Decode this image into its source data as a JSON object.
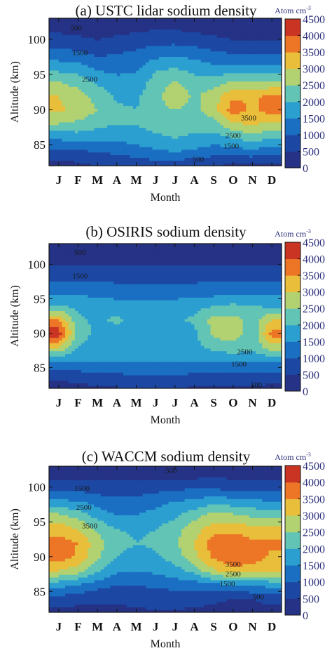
{
  "chart_data": [
    {
      "type": "heatmap",
      "title": "(a) USTC lidar sodium density",
      "xlabel": "Month",
      "ylabel": "Altitude (km)",
      "colorbar_unit": "Atom cm",
      "colorbar_unit_exp": "-3",
      "x": [
        "J",
        "F",
        "M",
        "A",
        "M",
        "J",
        "J",
        "A",
        "S",
        "O",
        "N",
        "D"
      ],
      "y": [
        82,
        84,
        86,
        88,
        90,
        92,
        94,
        96,
        98,
        100,
        102,
        103
      ],
      "xlim": [
        0.5,
        12.5
      ],
      "ylim": [
        82,
        103
      ],
      "yticks": [
        85,
        90,
        95,
        100
      ],
      "colorbar_ticks": [
        0,
        500,
        1000,
        1500,
        2000,
        2500,
        3000,
        3500,
        4000,
        4500
      ],
      "colorbar_range": [
        0,
        4500
      ],
      "contour_labels": [
        {
          "text": "500",
          "x": 1.9,
          "y": 101.5
        },
        {
          "text": "1500",
          "x": 2.1,
          "y": 98
        },
        {
          "text": "2500",
          "x": 2.6,
          "y": 94.2
        },
        {
          "text": "3500",
          "x": 10.8,
          "y": 88.7
        },
        {
          "text": "2500",
          "x": 10.0,
          "y": 86.2
        },
        {
          "text": "1500",
          "x": 9.9,
          "y": 84.7
        },
        {
          "text": "500",
          "x": 8.2,
          "y": 82.8
        }
      ],
      "z": [
        [
          300,
          350,
          500,
          600,
          650,
          700,
          600,
          550,
          450,
          400,
          400,
          350
        ],
        [
          800,
          900,
          1000,
          1100,
          1200,
          1400,
          1500,
          1400,
          1200,
          1200,
          1300,
          1100
        ],
        [
          1600,
          1700,
          1600,
          1600,
          1800,
          1900,
          2000,
          1900,
          1800,
          2000,
          2300,
          2000
        ],
        [
          2500,
          2400,
          2200,
          2000,
          2000,
          2200,
          2300,
          2200,
          2300,
          2900,
          3100,
          2800
        ],
        [
          3100,
          2800,
          2500,
          2100,
          2000,
          2300,
          2500,
          2300,
          2800,
          3800,
          3400,
          3800
        ],
        [
          3000,
          2700,
          2300,
          1900,
          1900,
          2300,
          2900,
          2400,
          2800,
          3400,
          3400,
          3600
        ],
        [
          2500,
          2300,
          1900,
          1700,
          1700,
          2200,
          2500,
          2200,
          2200,
          2600,
          2600,
          2500
        ],
        [
          1800,
          1700,
          1400,
          1300,
          1400,
          1900,
          2000,
          1800,
          1600,
          1700,
          1700,
          1600
        ],
        [
          1200,
          1100,
          900,
          1000,
          1100,
          1300,
          1400,
          1300,
          1100,
          1000,
          1000,
          1000
        ],
        [
          700,
          600,
          500,
          600,
          700,
          800,
          800,
          700,
          600,
          500,
          500,
          500
        ],
        [
          250,
          250,
          200,
          250,
          300,
          350,
          350,
          300,
          250,
          200,
          200,
          250
        ],
        [
          150,
          150,
          150,
          150,
          200,
          200,
          200,
          200,
          150,
          150,
          150,
          150
        ]
      ]
    },
    {
      "type": "heatmap",
      "title": "(b) OSIRIS sodium density",
      "xlabel": "Month",
      "ylabel": "Altitude (km)",
      "colorbar_unit": "Atom cm",
      "colorbar_unit_exp": "-3",
      "x": [
        "J",
        "F",
        "M",
        "A",
        "M",
        "J",
        "J",
        "A",
        "S",
        "O",
        "N",
        "D"
      ],
      "y": [
        82,
        84,
        86,
        88,
        90,
        92,
        94,
        96,
        98,
        100,
        102,
        103
      ],
      "xlim": [
        0.5,
        12.5
      ],
      "ylim": [
        82,
        103
      ],
      "yticks": [
        85,
        90,
        95,
        100
      ],
      "colorbar_ticks": [
        0,
        500,
        1000,
        1500,
        2000,
        2500,
        3000,
        3500,
        4000,
        4500
      ],
      "colorbar_range": [
        0,
        4500
      ],
      "contour_labels": [
        {
          "text": "500",
          "x": 2.1,
          "y": 101.6
        },
        {
          "text": "1500",
          "x": 2.1,
          "y": 98.2
        },
        {
          "text": "2500",
          "x": 10.6,
          "y": 87.2
        },
        {
          "text": "1500",
          "x": 10.3,
          "y": 85.4
        },
        {
          "text": "500",
          "x": 11.2,
          "y": 82.4
        }
      ],
      "z": [
        [
          250,
          300,
          400,
          450,
          500,
          500,
          450,
          450,
          400,
          400,
          400,
          350
        ],
        [
          700,
          800,
          900,
          950,
          1000,
          1000,
          1000,
          950,
          900,
          900,
          900,
          800
        ],
        [
          1600,
          1500,
          1500,
          1500,
          1500,
          1500,
          1500,
          1500,
          1500,
          1600,
          1600,
          1600
        ],
        [
          3000,
          2000,
          1800,
          1700,
          1700,
          1600,
          1600,
          1800,
          2200,
          2300,
          2100,
          2800
        ],
        [
          4300,
          2200,
          1900,
          1800,
          1700,
          1600,
          1600,
          1900,
          2600,
          2800,
          2100,
          3700
        ],
        [
          3500,
          2100,
          1900,
          2100,
          1800,
          1600,
          1900,
          2100,
          2700,
          2700,
          2300,
          3000
        ],
        [
          2000,
          1900,
          1800,
          1700,
          1700,
          1600,
          1700,
          1800,
          2000,
          2100,
          2000,
          1900
        ],
        [
          1400,
          1400,
          1300,
          1300,
          1300,
          1300,
          1300,
          1300,
          1300,
          1400,
          1400,
          1400
        ],
        [
          900,
          900,
          900,
          850,
          850,
          850,
          850,
          850,
          900,
          900,
          900,
          900
        ],
        [
          500,
          500,
          450,
          450,
          450,
          450,
          450,
          450,
          500,
          500,
          500,
          500
        ],
        [
          150,
          150,
          150,
          200,
          200,
          200,
          200,
          200,
          200,
          150,
          150,
          150
        ],
        [
          100,
          100,
          100,
          100,
          100,
          100,
          100,
          100,
          100,
          100,
          100,
          100
        ]
      ]
    },
    {
      "type": "heatmap",
      "title": "(c) WACCM  sodium density",
      "xlabel": "Month",
      "ylabel": "Altitude (km)",
      "colorbar_unit": "Atom cm",
      "colorbar_unit_exp": "-3",
      "x": [
        "J",
        "F",
        "M",
        "A",
        "M",
        "J",
        "J",
        "A",
        "S",
        "O",
        "N",
        "D"
      ],
      "y": [
        82,
        84,
        86,
        88,
        90,
        92,
        94,
        96,
        98,
        100,
        102,
        103
      ],
      "xlim": [
        0.5,
        12.5
      ],
      "ylim": [
        82,
        103
      ],
      "yticks": [
        85,
        90,
        95,
        100
      ],
      "colorbar_ticks": [
        0,
        500,
        1000,
        1500,
        2000,
        2500,
        3000,
        3500,
        4000,
        4500
      ],
      "colorbar_range": [
        0,
        4500
      ],
      "contour_labels": [
        {
          "text": "500",
          "x": 6.8,
          "y": 102.3
        },
        {
          "text": "1500",
          "x": 2.2,
          "y": 99.7
        },
        {
          "text": "2500",
          "x": 2.3,
          "y": 97.0
        },
        {
          "text": "3500",
          "x": 2.6,
          "y": 94.3
        },
        {
          "text": "3500",
          "x": 10.0,
          "y": 88.8
        },
        {
          "text": "2500",
          "x": 10.0,
          "y": 87.4
        },
        {
          "text": "1500",
          "x": 9.7,
          "y": 86.0
        },
        {
          "text": "500",
          "x": 11.3,
          "y": 84.1
        }
      ],
      "z": [
        [
          300,
          300,
          300,
          350,
          400,
          450,
          450,
          400,
          350,
          300,
          300,
          300
        ],
        [
          800,
          700,
          600,
          600,
          650,
          700,
          700,
          650,
          600,
          500,
          500,
          700
        ],
        [
          1700,
          1500,
          1200,
          1000,
          1000,
          1100,
          1200,
          1200,
          1400,
          1500,
          1600,
          1700
        ],
        [
          3000,
          2700,
          2100,
          1600,
          1500,
          1600,
          1800,
          2200,
          2900,
          3300,
          3200,
          3000
        ],
        [
          3800,
          3400,
          2600,
          2000,
          1800,
          1900,
          2200,
          2900,
          3600,
          3900,
          3800,
          3400
        ],
        [
          3700,
          3500,
          2700,
          2200,
          2000,
          2100,
          2400,
          3000,
          3800,
          3800,
          3600,
          3600
        ],
        [
          3300,
          3000,
          2400,
          2000,
          1900,
          2000,
          2300,
          2800,
          3300,
          3400,
          3200,
          3100
        ],
        [
          2600,
          2300,
          1800,
          1500,
          1500,
          1700,
          1900,
          2300,
          2700,
          2600,
          2400,
          2400
        ],
        [
          1600,
          1500,
          1300,
          1100,
          1200,
          1300,
          1500,
          1600,
          1800,
          1700,
          1600,
          1500
        ],
        [
          800,
          800,
          700,
          700,
          700,
          800,
          900,
          900,
          900,
          800,
          800,
          800
        ],
        [
          300,
          300,
          300,
          300,
          300,
          250,
          200,
          250,
          300,
          300,
          300,
          300
        ],
        [
          150,
          150,
          150,
          150,
          150,
          100,
          100,
          100,
          150,
          150,
          150,
          150
        ]
      ]
    }
  ]
}
